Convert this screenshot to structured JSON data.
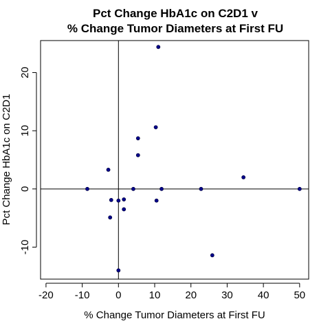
{
  "chart_data": {
    "type": "scatter",
    "title_line1": "Pct Change HbA1c on C2D1 v",
    "title_line2": "% Change Tumor Diameters at First FU",
    "xlabel": "% Change Tumor Diameters at First FU",
    "ylabel": "Pct Change HbA1c on C2D1",
    "xlim": [
      -21.5,
      52.5
    ],
    "ylim": [
      -15.5,
      25.5
    ],
    "xticks": [
      -20,
      -10,
      0,
      10,
      20,
      30,
      40,
      50
    ],
    "yticks": [
      -10,
      0,
      10,
      20
    ],
    "reference_lines": {
      "x": 0,
      "y": 0
    },
    "grid": false,
    "point_color": "#00008B",
    "points": [
      {
        "x": 11.0,
        "y": 24.4
      },
      {
        "x": 10.3,
        "y": 10.6
      },
      {
        "x": 5.4,
        "y": 8.7
      },
      {
        "x": 5.4,
        "y": 5.8
      },
      {
        "x": -2.8,
        "y": 3.3
      },
      {
        "x": 34.5,
        "y": 2.0
      },
      {
        "x": -8.6,
        "y": 0.0
      },
      {
        "x": 4.1,
        "y": 0.0
      },
      {
        "x": 11.9,
        "y": 0.0
      },
      {
        "x": 22.8,
        "y": 0.0
      },
      {
        "x": 50.0,
        "y": 0.0
      },
      {
        "x": -2.0,
        "y": -1.9
      },
      {
        "x": 0.0,
        "y": -2.0
      },
      {
        "x": 1.5,
        "y": -1.8
      },
      {
        "x": 10.5,
        "y": -2.0
      },
      {
        "x": 1.5,
        "y": -3.5
      },
      {
        "x": -2.3,
        "y": -4.9
      },
      {
        "x": 25.9,
        "y": -11.4
      },
      {
        "x": 0.0,
        "y": -14.0
      }
    ]
  }
}
